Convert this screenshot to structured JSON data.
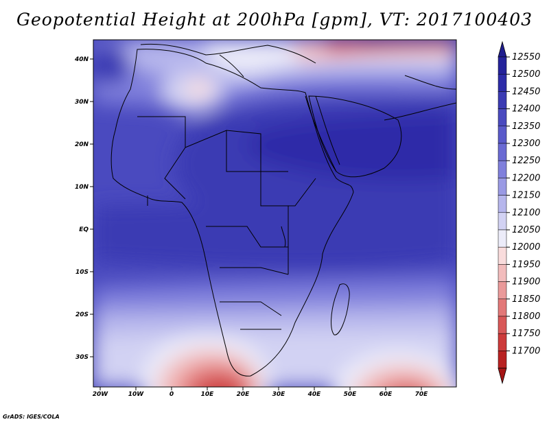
{
  "title": "Geopotential Height at 200hPa [gpm], VT: 2017100403",
  "credit": "GrADS: IGES/COLA",
  "lat_labels": [
    "40N",
    "30N",
    "20N",
    "10N",
    "EQ",
    "10S",
    "20S",
    "30S"
  ],
  "lon_labels": [
    "20W",
    "10W",
    "0",
    "10E",
    "20E",
    "30E",
    "40E",
    "50E",
    "60E",
    "70E"
  ],
  "colorbar": {
    "levels": [
      "12550",
      "12500",
      "12450",
      "12400",
      "12350",
      "12300",
      "12250",
      "12200",
      "12150",
      "12100",
      "12050",
      "12000",
      "11950",
      "11900",
      "11850",
      "11800",
      "11750",
      "11700"
    ],
    "colors": [
      "#25239b",
      "#2d2ca8",
      "#3b3bb3",
      "#4a4abf",
      "#5a5aca",
      "#6a6ad3",
      "#8080dc",
      "#9a9ae4",
      "#b6b6ec",
      "#d2d2f3",
      "#ececf9",
      "#f9dcdc",
      "#f2bcbc",
      "#ea9a9a",
      "#e27878",
      "#d85858",
      "#cc3a3a",
      "#b82222"
    ],
    "top_color": "#1f1d8e",
    "bottom_color": "#a51515"
  }
}
